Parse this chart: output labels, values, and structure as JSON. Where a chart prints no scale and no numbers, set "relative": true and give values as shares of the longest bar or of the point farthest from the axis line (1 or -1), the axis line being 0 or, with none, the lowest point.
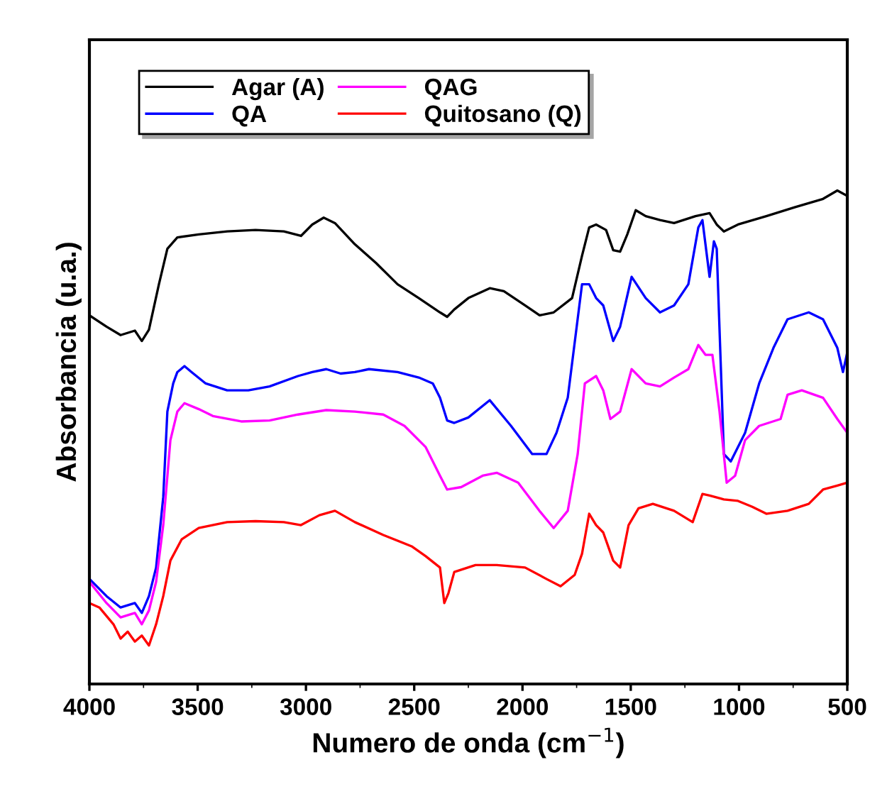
{
  "chart_data": {
    "type": "line",
    "xlabel": "Numero de onda (cm$^{−1}$)",
    "ylabel": "Absorbancia (u.a.)",
    "relative": true,
    "xlim": [
      4000,
      500
    ],
    "xticks": [
      4000,
      3500,
      3000,
      2500,
      2000,
      1500,
      1000,
      500
    ],
    "tick_labels": "x",
    "legend": "top left",
    "grid": false,
    "marker": "none",
    "line_style": "solid",
    "series": [
      {
        "name": "Agar (A)",
        "color": "#000000",
        "x": [
          4000,
          3921,
          3856,
          3790,
          3758,
          3725,
          3679,
          3640,
          3594,
          3495,
          3364,
          3233,
          3102,
          3023,
          2971,
          2918,
          2866,
          2774,
          2676,
          2577,
          2479,
          2381,
          2348,
          2315,
          2250,
          2151,
          2086,
          1987,
          1921,
          1856,
          1771,
          1725,
          1692,
          1660,
          1614,
          1581,
          1549,
          1516,
          1477,
          1431,
          1365,
          1300,
          1201,
          1136,
          1103,
          1070,
          1005,
          874,
          743,
          612,
          546,
          500
        ],
        "values": [
          0.747,
          0.724,
          0.707,
          0.716,
          0.695,
          0.718,
          0.81,
          0.882,
          0.905,
          0.911,
          0.917,
          0.92,
          0.917,
          0.908,
          0.931,
          0.945,
          0.934,
          0.891,
          0.853,
          0.81,
          0.782,
          0.753,
          0.744,
          0.759,
          0.782,
          0.802,
          0.796,
          0.767,
          0.747,
          0.753,
          0.782,
          0.868,
          0.925,
          0.931,
          0.92,
          0.879,
          0.876,
          0.911,
          0.96,
          0.948,
          0.94,
          0.934,
          0.948,
          0.954,
          0.931,
          0.917,
          0.931,
          0.948,
          0.966,
          0.983,
          1.0,
          0.989
        ]
      },
      {
        "name": "QA",
        "color": "#0000ff",
        "x": [
          4000,
          3921,
          3856,
          3790,
          3758,
          3725,
          3692,
          3659,
          3640,
          3613,
          3594,
          3561,
          3528,
          3463,
          3364,
          3266,
          3168,
          3037,
          2971,
          2906,
          2840,
          2774,
          2709,
          2577,
          2479,
          2414,
          2381,
          2348,
          2315,
          2250,
          2151,
          2053,
          1955,
          1889,
          1843,
          1791,
          1725,
          1692,
          1660,
          1627,
          1581,
          1549,
          1496,
          1431,
          1365,
          1300,
          1234,
          1188,
          1169,
          1136,
          1116,
          1103,
          1070,
          1038,
          972,
          907,
          841,
          776,
          678,
          612,
          546,
          520,
          500
        ],
        "values": [
          0.213,
          0.178,
          0.155,
          0.164,
          0.144,
          0.178,
          0.236,
          0.379,
          0.552,
          0.609,
          0.632,
          0.644,
          0.632,
          0.609,
          0.595,
          0.595,
          0.603,
          0.624,
          0.632,
          0.638,
          0.629,
          0.632,
          0.638,
          0.632,
          0.621,
          0.609,
          0.58,
          0.534,
          0.529,
          0.54,
          0.575,
          0.523,
          0.466,
          0.466,
          0.509,
          0.58,
          0.81,
          0.81,
          0.782,
          0.767,
          0.695,
          0.724,
          0.825,
          0.782,
          0.753,
          0.767,
          0.81,
          0.925,
          0.94,
          0.825,
          0.897,
          0.882,
          0.466,
          0.451,
          0.509,
          0.609,
          0.681,
          0.739,
          0.753,
          0.739,
          0.681,
          0.632,
          0.672
        ]
      },
      {
        "name": "QAG",
        "color": "#ff00ff",
        "x": [
          4000,
          3921,
          3856,
          3790,
          3758,
          3725,
          3692,
          3659,
          3626,
          3594,
          3561,
          3495,
          3430,
          3299,
          3168,
          3037,
          2906,
          2774,
          2643,
          2545,
          2447,
          2381,
          2348,
          2283,
          2184,
          2119,
          2020,
          1922,
          1856,
          1791,
          1745,
          1712,
          1660,
          1627,
          1594,
          1549,
          1496,
          1431,
          1365,
          1300,
          1234,
          1188,
          1155,
          1123,
          1090,
          1057,
          1018,
          972,
          907,
          808,
          776,
          710,
          612,
          546,
          500
        ],
        "values": [
          0.207,
          0.164,
          0.135,
          0.144,
          0.121,
          0.149,
          0.207,
          0.322,
          0.494,
          0.552,
          0.569,
          0.557,
          0.543,
          0.532,
          0.534,
          0.546,
          0.555,
          0.552,
          0.546,
          0.523,
          0.48,
          0.422,
          0.394,
          0.399,
          0.422,
          0.428,
          0.408,
          0.351,
          0.316,
          0.351,
          0.466,
          0.609,
          0.624,
          0.595,
          0.537,
          0.552,
          0.638,
          0.609,
          0.603,
          0.621,
          0.638,
          0.687,
          0.667,
          0.667,
          0.552,
          0.408,
          0.422,
          0.494,
          0.523,
          0.537,
          0.586,
          0.595,
          0.58,
          0.537,
          0.509
        ]
      },
      {
        "name": "Quitosano (Q)",
        "color": "#ff0000",
        "x": [
          4000,
          3954,
          3889,
          3856,
          3823,
          3790,
          3758,
          3725,
          3692,
          3659,
          3626,
          3574,
          3495,
          3364,
          3233,
          3102,
          3023,
          2938,
          2866,
          2774,
          2643,
          2512,
          2447,
          2381,
          2361,
          2342,
          2315,
          2217,
          2119,
          1988,
          1890,
          1824,
          1759,
          1725,
          1692,
          1660,
          1627,
          1581,
          1549,
          1510,
          1464,
          1398,
          1300,
          1214,
          1169,
          1136,
          1070,
          1005,
          939,
          874,
          776,
          678,
          612,
          546,
          500
        ],
        "values": [
          0.164,
          0.155,
          0.121,
          0.092,
          0.106,
          0.086,
          0.098,
          0.078,
          0.121,
          0.178,
          0.25,
          0.293,
          0.316,
          0.328,
          0.33,
          0.328,
          0.322,
          0.342,
          0.351,
          0.328,
          0.302,
          0.279,
          0.259,
          0.236,
          0.164,
          0.184,
          0.227,
          0.241,
          0.241,
          0.236,
          0.213,
          0.198,
          0.221,
          0.264,
          0.345,
          0.322,
          0.307,
          0.25,
          0.236,
          0.322,
          0.356,
          0.365,
          0.351,
          0.328,
          0.385,
          0.382,
          0.374,
          0.371,
          0.359,
          0.345,
          0.351,
          0.365,
          0.394,
          0.402,
          0.408
        ]
      }
    ]
  }
}
